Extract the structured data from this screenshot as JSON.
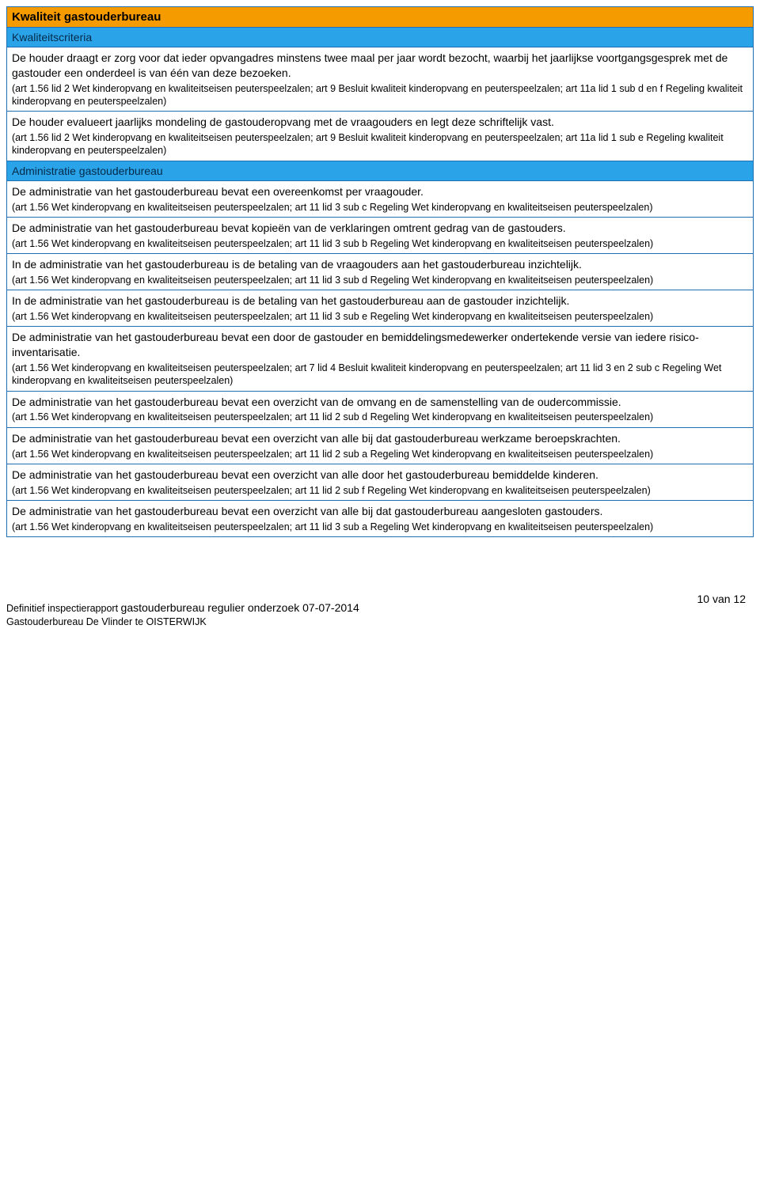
{
  "colors": {
    "border": "#1f6fb5",
    "header_orange_bg": "#f59b00",
    "header_blue_bg": "#2aa3e8",
    "header_blue_text": "#042a4a",
    "body_bg": "#ffffff",
    "text": "#000000"
  },
  "rows": [
    {
      "type": "orange",
      "text": "Kwaliteit gastouderbureau"
    },
    {
      "type": "blue",
      "text": "Kwaliteitscriteria"
    },
    {
      "type": "entry",
      "main": "De houder draagt er zorg voor dat ieder opvangadres minstens twee maal per jaar wordt bezocht, waarbij het jaarlijkse voortgangsgesprek met de gastouder een onderdeel is van één van deze bezoeken.",
      "ref": "(art 1.56 lid 2 Wet kinderopvang en kwaliteitseisen peuterspeelzalen; art 9 Besluit kwaliteit kinderopvang en peuterspeelzalen; art 11a lid 1 sub d en f Regeling kwaliteit kinderopvang en peuterspeelzalen)"
    },
    {
      "type": "entry",
      "main": "De houder evalueert jaarlijks mondeling de gastouderopvang met de vraagouders en legt deze schriftelijk vast.",
      "ref": "(art 1.56 lid 2 Wet kinderopvang en kwaliteitseisen peuterspeelzalen; art 9 Besluit kwaliteit kinderopvang en peuterspeelzalen; art 11a lid 1 sub e Regeling kwaliteit kinderopvang en peuterspeelzalen)"
    },
    {
      "type": "blue",
      "text": "Administratie gastouderbureau"
    },
    {
      "type": "entry",
      "main": "De administratie van het gastouderbureau bevat een overeenkomst per vraagouder.",
      "ref": "(art 1.56 Wet kinderopvang en kwaliteitseisen peuterspeelzalen; art 11 lid 3 sub c Regeling Wet kinderopvang en kwaliteitseisen peuterspeelzalen)"
    },
    {
      "type": "entry",
      "main": "De administratie van het gastouderbureau bevat kopieën van de verklaringen omtrent gedrag van de gastouders.",
      "ref": "(art 1.56 Wet kinderopvang en kwaliteitseisen peuterspeelzalen; art 11 lid 3 sub b Regeling Wet kinderopvang en kwaliteitseisen peuterspeelzalen)"
    },
    {
      "type": "entry",
      "main": "In de administratie van het gastouderbureau is de betaling van de vraagouders aan het gastouderbureau inzichtelijk.",
      "ref": "(art 1.56 Wet kinderopvang en kwaliteitseisen peuterspeelzalen; art 11 lid 3 sub d Regeling Wet kinderopvang en kwaliteitseisen peuterspeelzalen)"
    },
    {
      "type": "entry",
      "main": "In de administratie van het gastouderbureau is de betaling van het gastouderbureau aan de gastouder inzichtelijk.",
      "ref": "(art 1.56 Wet kinderopvang en kwaliteitseisen peuterspeelzalen; art 11 lid 3 sub e Regeling Wet kinderopvang en kwaliteitseisen peuterspeelzalen)"
    },
    {
      "type": "entry",
      "main": "De administratie van het gastouderbureau bevat een door de gastouder en bemiddelingsmedewerker ondertekende versie van iedere risico-inventarisatie.",
      "ref": "(art 1.56 Wet kinderopvang en kwaliteitseisen peuterspeelzalen; art 7 lid 4 Besluit kwaliteit kinderopvang en peuterspeelzalen; art 11 lid 3 en 2 sub c Regeling Wet kinderopvang en kwaliteitseisen peuterspeelzalen)"
    },
    {
      "type": "entry",
      "main": "De administratie van het gastouderbureau bevat een overzicht van de omvang en de samenstelling van de oudercommissie.",
      "ref": "(art 1.56 Wet kinderopvang en kwaliteitseisen peuterspeelzalen; art 11 lid 2 sub d Regeling Wet kinderopvang en kwaliteitseisen peuterspeelzalen)"
    },
    {
      "type": "entry",
      "main": "De administratie van het gastouderbureau bevat een overzicht van alle bij dat gastouderbureau werkzame beroepskrachten.",
      "ref": "(art 1.56 Wet kinderopvang en kwaliteitseisen peuterspeelzalen; art 11 lid 2 sub a Regeling Wet kinderopvang en kwaliteitseisen peuterspeelzalen)"
    },
    {
      "type": "entry",
      "main": "De administratie van het gastouderbureau bevat een overzicht van alle door het gastouderbureau bemiddelde kinderen.",
      "ref": "(art 1.56 Wet kinderopvang en kwaliteitseisen peuterspeelzalen; art 11 lid 2 sub f Regeling Wet kinderopvang en kwaliteitseisen peuterspeelzalen)"
    },
    {
      "type": "entry",
      "main": "De administratie van het gastouderbureau bevat een overzicht van alle bij dat gastouderbureau aangesloten gastouders.",
      "ref": "(art 1.56 Wet kinderopvang en kwaliteitseisen peuterspeelzalen; art 11 lid 3 sub a Regeling Wet kinderopvang en kwaliteitseisen peuterspeelzalen)"
    }
  ],
  "footer": {
    "line1_prefix": "Definitief inspectierapport ",
    "line1_emph": "gastouderbureau regulier onderzoek 07-07-2014",
    "line2": "Gastouderbureau De Vlinder te OISTERWIJK",
    "page": "10 van 12"
  }
}
